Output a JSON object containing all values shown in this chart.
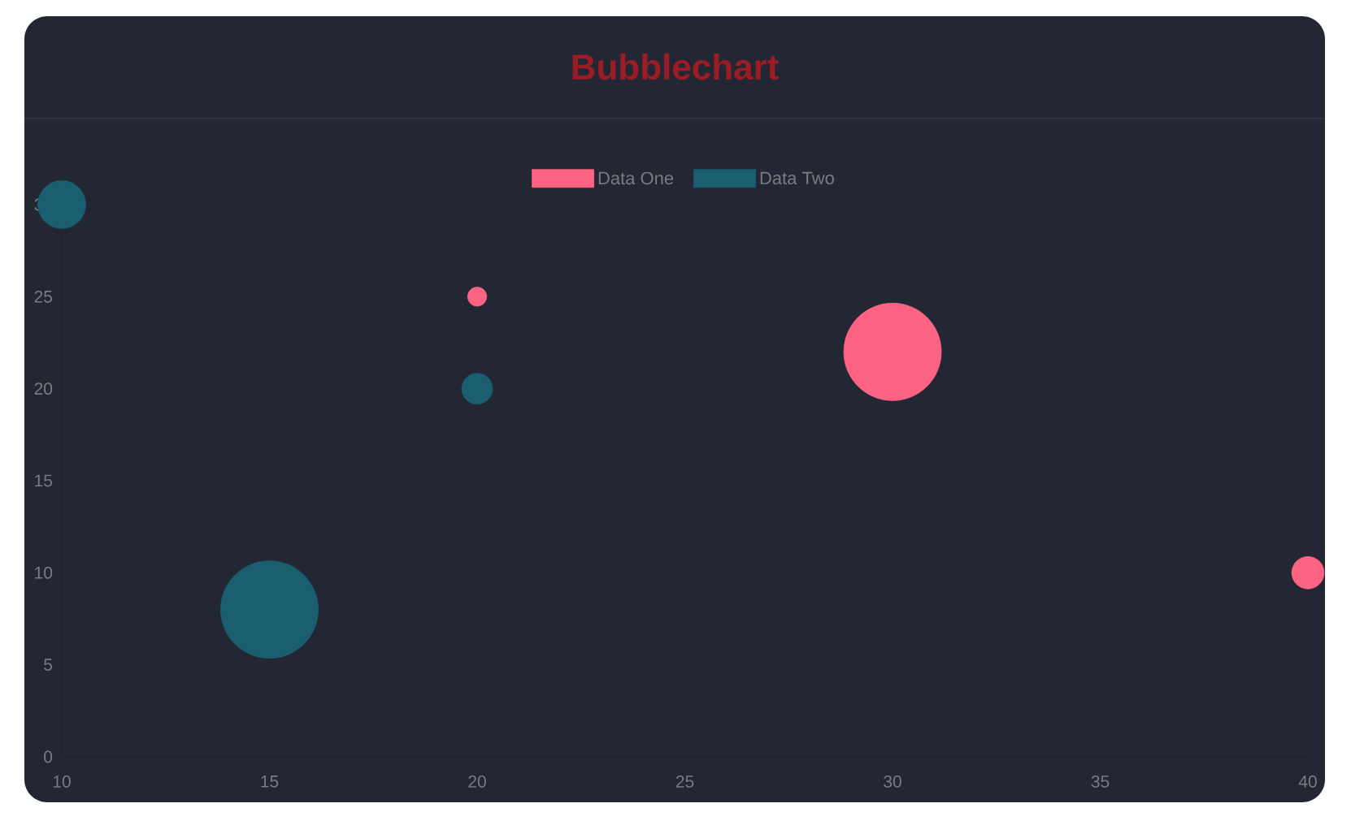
{
  "chart_data": {
    "type": "bubble",
    "title": "Bubblechart",
    "marker": "circle",
    "legend": "top",
    "xlim": [
      10,
      40
    ],
    "xticks": [
      10,
      15,
      20,
      25,
      30,
      35,
      40
    ],
    "ylim": [
      0,
      30
    ],
    "yticks": [
      0,
      5,
      10,
      15,
      20,
      25,
      30
    ],
    "series": [
      {
        "name": "Data One",
        "color": "#ff6384",
        "x": [
          20,
          40,
          30
        ],
        "values": [
          25,
          10,
          22
        ],
        "sizes": [
          0.038,
          0.11,
          1
        ]
      },
      {
        "name": "Data Two",
        "color": "#1a5e70",
        "x": [
          10,
          20,
          15
        ],
        "values": [
          30,
          20,
          8
        ],
        "sizes": [
          0.24,
          0.1,
          1
        ]
      }
    ]
  }
}
